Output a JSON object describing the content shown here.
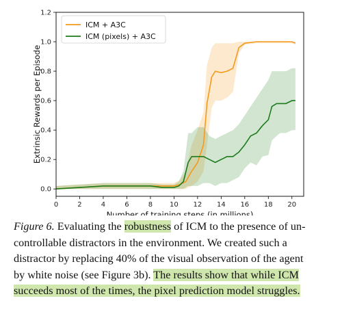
{
  "chart_data": {
    "type": "line",
    "xlabel": "Number of training steps (in millions)",
    "ylabel": "Extrinsic Rewards per Episode",
    "xlim": [
      0,
      21
    ],
    "ylim": [
      -0.05,
      1.2
    ],
    "xticks": [
      0,
      2,
      4,
      6,
      8,
      10,
      12,
      14,
      16,
      18,
      20
    ],
    "yticks": [
      0.0,
      0.2,
      0.4,
      0.6,
      0.8,
      1.0,
      1.2
    ],
    "xtick_labels": [
      "0",
      "2",
      "4",
      "6",
      "8",
      "10",
      "12",
      "14",
      "16",
      "18",
      "20"
    ],
    "ytick_labels": [
      "0.0",
      "0.2",
      "0.4",
      "0.6",
      "0.8",
      "1.0",
      "1.2"
    ],
    "legend_placement": "top-left",
    "series": [
      {
        "name": "ICM + A3C",
        "color": "#f39a1e",
        "x": [
          0,
          2,
          4,
          6,
          8,
          9,
          10,
          10.5,
          11,
          11.5,
          12,
          12.5,
          12.8,
          13.2,
          13.5,
          14,
          14.5,
          15,
          15.5,
          16,
          17,
          18,
          19,
          20,
          20.3
        ],
        "y": [
          0.0,
          0.01,
          0.02,
          0.02,
          0.02,
          0.02,
          0.02,
          0.03,
          0.05,
          0.12,
          0.18,
          0.3,
          0.58,
          0.76,
          0.8,
          0.79,
          0.8,
          0.82,
          0.96,
          0.99,
          1.0,
          1.0,
          1.0,
          1.0,
          0.99
        ],
        "y_low": [
          0.0,
          0.0,
          0.0,
          0.0,
          0.0,
          0.0,
          0.0,
          0.0,
          0.0,
          0.02,
          0.05,
          0.12,
          0.3,
          0.55,
          0.6,
          0.6,
          0.62,
          0.66,
          0.92,
          0.98,
          0.99,
          0.99,
          0.99,
          0.99,
          0.98
        ],
        "y_high": [
          0.02,
          0.03,
          0.04,
          0.04,
          0.04,
          0.04,
          0.04,
          0.06,
          0.12,
          0.3,
          0.4,
          0.52,
          0.84,
          0.96,
          0.99,
          0.99,
          0.99,
          0.99,
          1.0,
          1.0,
          1.0,
          1.0,
          1.0,
          1.0,
          1.0
        ]
      },
      {
        "name": "ICM (pixels) + A3C",
        "color": "#1b7b1b",
        "x": [
          0,
          2,
          4,
          6,
          8,
          9,
          10,
          10.4,
          10.8,
          11.2,
          11.5,
          12,
          12.5,
          13,
          13.5,
          14,
          14.5,
          15,
          15.5,
          16,
          16.5,
          17,
          17.5,
          18,
          18.3,
          18.7,
          19,
          19.5,
          20,
          20.3
        ],
        "y": [
          0.0,
          0.01,
          0.02,
          0.02,
          0.02,
          0.01,
          0.01,
          0.02,
          0.05,
          0.18,
          0.22,
          0.22,
          0.22,
          0.2,
          0.18,
          0.2,
          0.22,
          0.22,
          0.25,
          0.3,
          0.36,
          0.38,
          0.43,
          0.47,
          0.56,
          0.58,
          0.58,
          0.58,
          0.6,
          0.6
        ],
        "y_low": [
          0.0,
          0.0,
          0.0,
          0.0,
          0.0,
          0.0,
          0.0,
          0.0,
          0.0,
          0.02,
          0.02,
          0.02,
          0.04,
          0.04,
          0.02,
          0.04,
          0.04,
          0.06,
          0.08,
          0.14,
          0.18,
          0.16,
          0.22,
          0.23,
          0.33,
          0.36,
          0.38,
          0.38,
          0.4,
          0.4
        ],
        "y_high": [
          0.02,
          0.03,
          0.04,
          0.04,
          0.04,
          0.03,
          0.03,
          0.05,
          0.12,
          0.38,
          0.38,
          0.42,
          0.42,
          0.36,
          0.34,
          0.36,
          0.38,
          0.4,
          0.44,
          0.5,
          0.56,
          0.62,
          0.68,
          0.74,
          0.8,
          0.8,
          0.8,
          0.8,
          0.82,
          0.82
        ]
      }
    ]
  },
  "caption": {
    "figure_label": "Figure 6.",
    "line1_a": "Evaluating the",
    "highlight1": "robustness",
    "line1_b": "of ICM to the presence of un-",
    "line2": "controllable distractors in the environment.  We created such a",
    "line3": "distractor by replacing 40% of the visual observation of the agent",
    "line4_a": "by white noise (see Figure 3b).",
    "highlight2a": "The results show that while ICM",
    "highlight2b": "succeeds most of the times, the pixel prediction model struggles."
  }
}
